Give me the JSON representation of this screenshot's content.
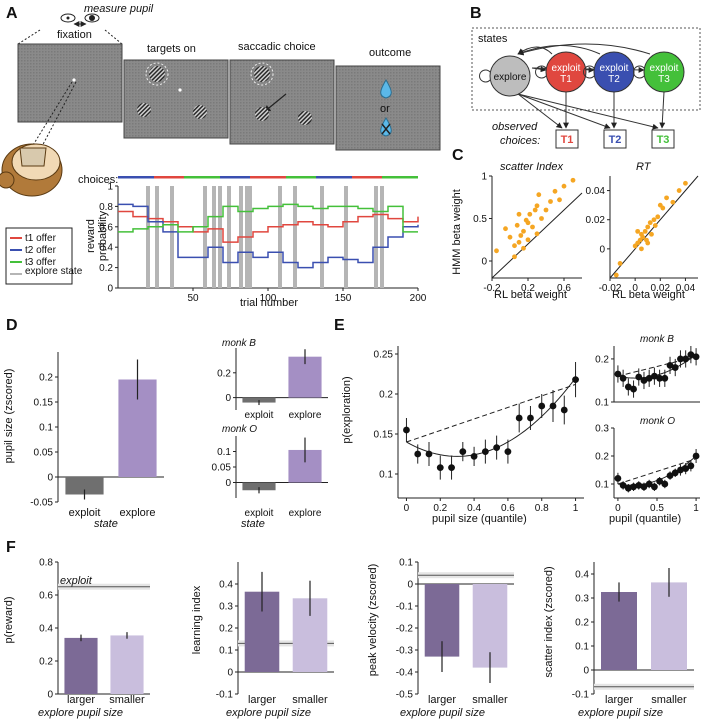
{
  "figure": {
    "panel_labels": {
      "A": "A",
      "B": "B",
      "C": "C",
      "D": "D",
      "E": "E",
      "F": "F"
    },
    "A": {
      "measure_pupil": "measure pupil",
      "fixation": "fixation",
      "targets_on": "targets on",
      "saccadic_choice": "saccadic choice",
      "outcome": "outcome",
      "or": "or",
      "choices_label": "choices:",
      "legend": [
        "t1 offer",
        "t2 offer",
        "t3 offer",
        "explore state"
      ],
      "legend_state_line2": "state",
      "ylabel_1": "reward",
      "ylabel_2": "probability",
      "xlabel": "trial number",
      "colors": {
        "t1": "#e0473f",
        "t2": "#3a4fb0",
        "t3": "#44c03a",
        "explore": "#b5b5b5"
      }
    },
    "B": {
      "states": "states",
      "nodes": [
        "explore",
        "exploit T1",
        "exploit T2",
        "exploit T3"
      ],
      "observed_1": "observed",
      "observed_2": "choices:",
      "choices": [
        "T1",
        "T2",
        "T3"
      ],
      "node_colors": [
        "#bdbdbd",
        "#e0473f",
        "#3a4fb0",
        "#44c03a"
      ]
    },
    "C": {
      "left_title": "scatter Index",
      "right_title": "RT",
      "ylabel": "HMM beta weight",
      "xlabel": "RL beta weight",
      "point_color": "#f5a623"
    },
    "D": {
      "ylabel": "pupil size (zscored)",
      "xlabel": "state",
      "inset_b": "monk B",
      "inset_o": "monk O",
      "categories": [
        "exploit",
        "explore"
      ],
      "colors": {
        "exploit": "#6f6f6f",
        "explore": "#a48fc4"
      }
    },
    "E": {
      "ylabel": "p(exploration)",
      "xlabel": "pupil size (quantile)",
      "inset_xlabel": "pupil (quantile)",
      "inset_b": "monk B",
      "inset_o": "monk O"
    },
    "F": {
      "xlabel": "explore pupil size",
      "categories": [
        "larger",
        "smaller"
      ],
      "exploit_label": "exploit",
      "ylabels": [
        "p(reward)",
        "learning index",
        "peak velocity (zscored)",
        "scatter index (zscored)"
      ],
      "colors": {
        "larger": "#7c6a96",
        "smaller": "#c9bedd"
      }
    }
  },
  "chart_data": [
    {
      "type": "line",
      "title": "",
      "xlabel": "trial number",
      "ylabel": "reward probability",
      "xlim": [
        0,
        200
      ],
      "ylim": [
        0,
        1
      ],
      "series": [
        {
          "name": "t1 offer",
          "x": [
            0,
            10,
            20,
            30,
            40,
            50,
            60,
            70,
            80,
            90,
            100,
            110,
            120,
            130,
            140,
            150,
            160,
            170,
            180,
            190,
            200
          ],
          "values": [
            0.75,
            0.7,
            0.68,
            0.65,
            0.6,
            0.55,
            0.58,
            0.45,
            0.5,
            0.55,
            0.6,
            0.62,
            0.65,
            0.62,
            0.6,
            0.65,
            0.7,
            0.72,
            0.68,
            0.65,
            0.7
          ]
        },
        {
          "name": "t2 offer",
          "x": [
            0,
            10,
            20,
            30,
            40,
            50,
            60,
            70,
            80,
            90,
            100,
            110,
            120,
            130,
            140,
            150,
            160,
            170,
            180,
            190,
            200
          ],
          "values": [
            0.82,
            0.8,
            0.65,
            0.55,
            0.3,
            0.3,
            0.4,
            0.25,
            0.35,
            0.3,
            0.35,
            0.25,
            0.2,
            0.25,
            0.3,
            0.28,
            0.25,
            0.4,
            0.5,
            0.6,
            0.62
          ]
        },
        {
          "name": "t3 offer",
          "x": [
            0,
            10,
            20,
            30,
            40,
            50,
            60,
            70,
            80,
            90,
            100,
            110,
            120,
            130,
            140,
            150,
            160,
            170,
            180,
            190,
            200
          ],
          "values": [
            0.55,
            0.58,
            0.6,
            0.62,
            0.55,
            0.6,
            0.7,
            0.8,
            0.75,
            0.78,
            0.8,
            0.82,
            0.8,
            0.78,
            0.8,
            0.8,
            0.78,
            0.75,
            0.8,
            0.55,
            0.55
          ]
        }
      ],
      "explore_trials": [
        20,
        26,
        36,
        58,
        64,
        68,
        74,
        82,
        86,
        88,
        108,
        118,
        136,
        152,
        172,
        176
      ]
    },
    {
      "type": "scatter",
      "title": "scatter Index",
      "xlabel": "RL beta weight",
      "ylabel": "HMM beta weight",
      "xlim": [
        -0.2,
        0.8
      ],
      "ylim": [
        -0.2,
        1.0
      ],
      "x": [
        -0.15,
        -0.05,
        0.0,
        0.05,
        0.08,
        0.1,
        0.12,
        0.15,
        0.15,
        0.18,
        0.2,
        0.22,
        0.25,
        0.28,
        0.3,
        0.32,
        0.35,
        0.4,
        0.45,
        0.5,
        0.55,
        0.6,
        0.7,
        0.05,
        0.1,
        0.2,
        0.3
      ],
      "values": [
        0.12,
        0.38,
        0.28,
        0.18,
        0.42,
        0.22,
        0.3,
        0.35,
        0.15,
        0.48,
        0.25,
        0.55,
        0.4,
        0.6,
        0.32,
        0.78,
        0.5,
        0.6,
        0.7,
        0.82,
        0.72,
        0.88,
        0.95,
        0.05,
        0.55,
        0.45,
        0.65
      ]
    },
    {
      "type": "scatter",
      "title": "RT",
      "xlabel": "RL beta weight",
      "ylabel": "HMM beta weight",
      "xlim": [
        -0.02,
        0.05
      ],
      "ylim": [
        -0.02,
        0.05
      ],
      "x": [
        -0.015,
        -0.012,
        0.0,
        0.002,
        0.004,
        0.005,
        0.006,
        0.008,
        0.009,
        0.01,
        0.012,
        0.013,
        0.015,
        0.016,
        0.018,
        0.02,
        0.022,
        0.025,
        0.03,
        0.035,
        0.04,
        0.005,
        0.01,
        0.002
      ],
      "values": [
        -0.018,
        -0.01,
        0.002,
        0.004,
        0.006,
        0.01,
        0.008,
        0.012,
        0.006,
        0.015,
        0.018,
        0.01,
        0.02,
        0.016,
        0.022,
        0.03,
        0.028,
        0.035,
        0.032,
        0.04,
        0.045,
        0.0,
        0.004,
        0.012
      ]
    },
    {
      "type": "bar",
      "title": "",
      "categories": [
        "exploit",
        "explore"
      ],
      "values": [
        -0.035,
        0.195
      ],
      "errors": [
        0.01,
        0.04
      ],
      "ylabel": "pupil size (zscored)",
      "xlabel": "state",
      "ylim": [
        -0.05,
        0.25
      ]
    },
    {
      "type": "bar",
      "title": "monk B",
      "categories": [
        "exploit",
        "explore"
      ],
      "values": [
        -0.04,
        0.33
      ],
      "errors": [
        0.02,
        0.06
      ],
      "ylim": [
        -0.1,
        0.4
      ]
    },
    {
      "type": "bar",
      "title": "monk O",
      "categories": [
        "exploit",
        "explore"
      ],
      "values": [
        -0.025,
        0.105
      ],
      "errors": [
        0.01,
        0.04
      ],
      "ylim": [
        -0.05,
        0.15
      ]
    },
    {
      "type": "scatter",
      "title": "",
      "xlabel": "pupil size (quantile)",
      "ylabel": "p(exploration)",
      "xlim": [
        -0.05,
        1.05
      ],
      "ylim": [
        0.07,
        0.26
      ],
      "x": [
        0,
        0.0667,
        0.1333,
        0.2,
        0.2667,
        0.3333,
        0.4,
        0.4667,
        0.5333,
        0.6,
        0.6667,
        0.7333,
        0.8,
        0.8667,
        0.9333,
        1.0
      ],
      "values": [
        0.155,
        0.125,
        0.125,
        0.108,
        0.108,
        0.128,
        0.122,
        0.128,
        0.133,
        0.128,
        0.17,
        0.17,
        0.185,
        0.185,
        0.18,
        0.218
      ],
      "errors": [
        0.015,
        0.012,
        0.015,
        0.015,
        0.015,
        0.012,
        0.012,
        0.015,
        0.015,
        0.015,
        0.018,
        0.015,
        0.015,
        0.02,
        0.018,
        0.022
      ]
    },
    {
      "type": "scatter",
      "title": "monk B",
      "xlim": [
        -0.05,
        1.05
      ],
      "ylim": [
        0.1,
        0.23
      ],
      "x": [
        0,
        0.0667,
        0.1333,
        0.2,
        0.2667,
        0.3333,
        0.4,
        0.4667,
        0.5333,
        0.6,
        0.6667,
        0.7333,
        0.8,
        0.8667,
        0.9333,
        1.0
      ],
      "values": [
        0.165,
        0.155,
        0.135,
        0.13,
        0.158,
        0.15,
        0.155,
        0.16,
        0.155,
        0.155,
        0.185,
        0.18,
        0.2,
        0.2,
        0.21,
        0.205
      ],
      "errors": [
        0.02,
        0.02,
        0.02,
        0.02,
        0.02,
        0.02,
        0.02,
        0.02,
        0.02,
        0.02,
        0.02,
        0.02,
        0.02,
        0.02,
        0.02,
        0.02
      ]
    },
    {
      "type": "scatter",
      "title": "monk O",
      "xlim": [
        -0.05,
        1.05
      ],
      "ylim": [
        0.05,
        0.3
      ],
      "x": [
        0,
        0.0667,
        0.1333,
        0.2,
        0.2667,
        0.3333,
        0.4,
        0.4667,
        0.5333,
        0.6,
        0.6667,
        0.7333,
        0.8,
        0.8667,
        0.9333,
        1.0
      ],
      "values": [
        0.12,
        0.095,
        0.085,
        0.09,
        0.095,
        0.09,
        0.1,
        0.09,
        0.11,
        0.1,
        0.13,
        0.14,
        0.15,
        0.155,
        0.165,
        0.2
      ],
      "errors": [
        0.02,
        0.015,
        0.015,
        0.015,
        0.015,
        0.015,
        0.015,
        0.015,
        0.015,
        0.015,
        0.015,
        0.015,
        0.02,
        0.02,
        0.02,
        0.025
      ]
    },
    {
      "type": "bar",
      "title": "",
      "categories": [
        "larger",
        "smaller"
      ],
      "values": [
        0.34,
        0.355
      ],
      "errors": [
        0.02,
        0.02
      ],
      "ylabel": "p(reward)",
      "ylim": [
        0,
        0.8
      ],
      "reference_line": {
        "label": "exploit",
        "value": 0.65
      }
    },
    {
      "type": "bar",
      "title": "",
      "categories": [
        "larger",
        "smaller"
      ],
      "values": [
        0.365,
        0.335
      ],
      "errors": [
        0.09,
        0.08
      ],
      "ylabel": "learning index",
      "ylim": [
        -0.1,
        0.5
      ],
      "reference_line": {
        "label": "exploit",
        "value": 0.13
      }
    },
    {
      "type": "bar",
      "title": "",
      "categories": [
        "larger",
        "smaller"
      ],
      "values": [
        -0.33,
        -0.38
      ],
      "errors": [
        0.07,
        0.07
      ],
      "ylabel": "peak velocity (zscored)",
      "ylim": [
        -0.5,
        0.1
      ],
      "reference_line": {
        "label": "exploit",
        "value": 0.04
      }
    },
    {
      "type": "bar",
      "title": "",
      "categories": [
        "larger",
        "smaller"
      ],
      "values": [
        0.325,
        0.365
      ],
      "errors": [
        0.04,
        0.06
      ],
      "ylabel": "scatter index (zscored)",
      "ylim": [
        -0.1,
        0.45
      ],
      "reference_line": {
        "label": "exploit",
        "value": -0.07
      }
    }
  ]
}
